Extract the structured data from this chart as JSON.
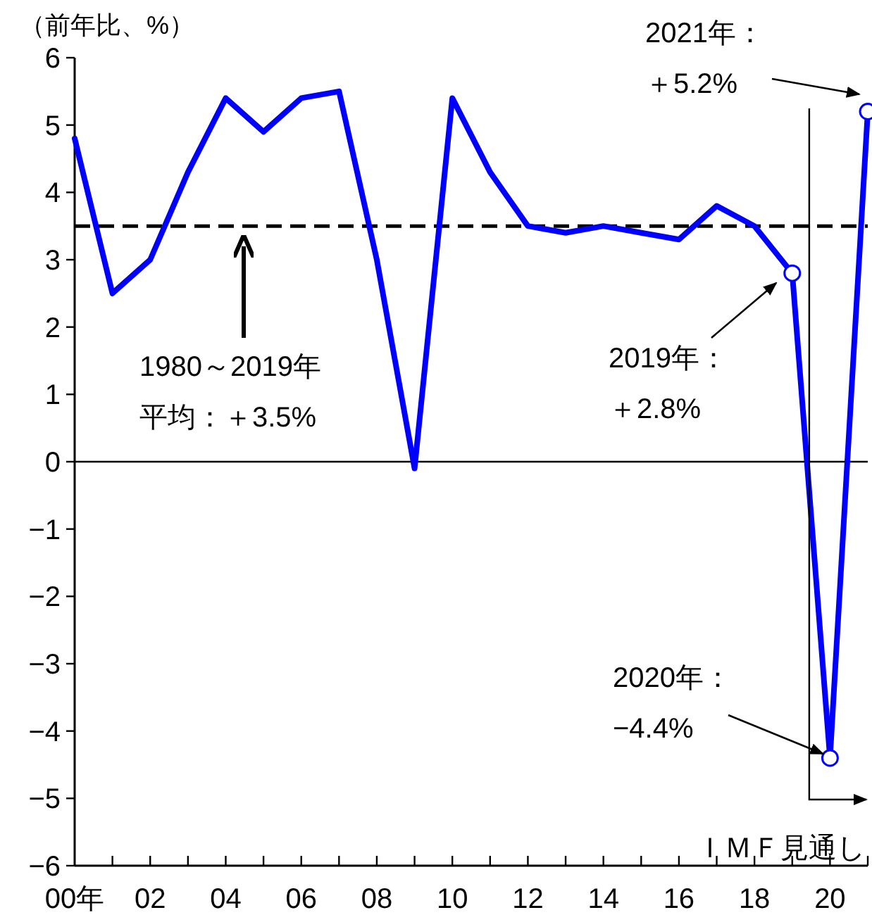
{
  "chart_data": {
    "type": "line",
    "ylabel": "（前年比、%）",
    "categories": [
      "00年",
      null,
      "02",
      null,
      "04",
      null,
      "06",
      null,
      "08",
      null,
      "10",
      null,
      "12",
      null,
      "14",
      null,
      "16",
      null,
      "18",
      null,
      "20",
      null
    ],
    "series": [
      {
        "color": "#0000ff",
        "marker": "none",
        "values": [
          4.8,
          2.5,
          3.0,
          4.3,
          5.4,
          4.9,
          5.4,
          5.5,
          3.0,
          -0.1,
          5.4,
          4.3,
          3.5,
          3.4,
          3.5,
          3.4,
          3.3,
          3.8,
          3.5,
          2.8,
          -4.4,
          5.2
        ]
      },
      {
        "type": "scatter",
        "color": "#0000ff",
        "marker": "circle",
        "values": [
          null,
          null,
          null,
          null,
          null,
          null,
          null,
          null,
          null,
          null,
          null,
          null,
          null,
          null,
          null,
          null,
          null,
          null,
          null,
          2.8,
          -4.4,
          5.2
        ]
      }
    ],
    "ylim": [
      -6,
      6
    ],
    "yticks": [
      -6,
      -5,
      -4,
      -3,
      -2,
      -1,
      0,
      1,
      2,
      3,
      4,
      5,
      6
    ],
    "ref_lines": [
      {
        "axis": "y",
        "value": 0,
        "color": "#000000",
        "line_style": "solid"
      },
      {
        "axis": "y",
        "value": 3.5,
        "color": "#000000",
        "line_style": "dashed"
      }
    ],
    "annotations": [
      "1980～2019年平均：＋3.5%",
      "2019年：＋2.8%",
      {
        "text": "2020年：−4.4%",
        "x": "20",
        "y": -4.4
      },
      "2021年：＋5.2%",
      "ＩＭＦ見通し"
    ],
    "grid": false
  }
}
